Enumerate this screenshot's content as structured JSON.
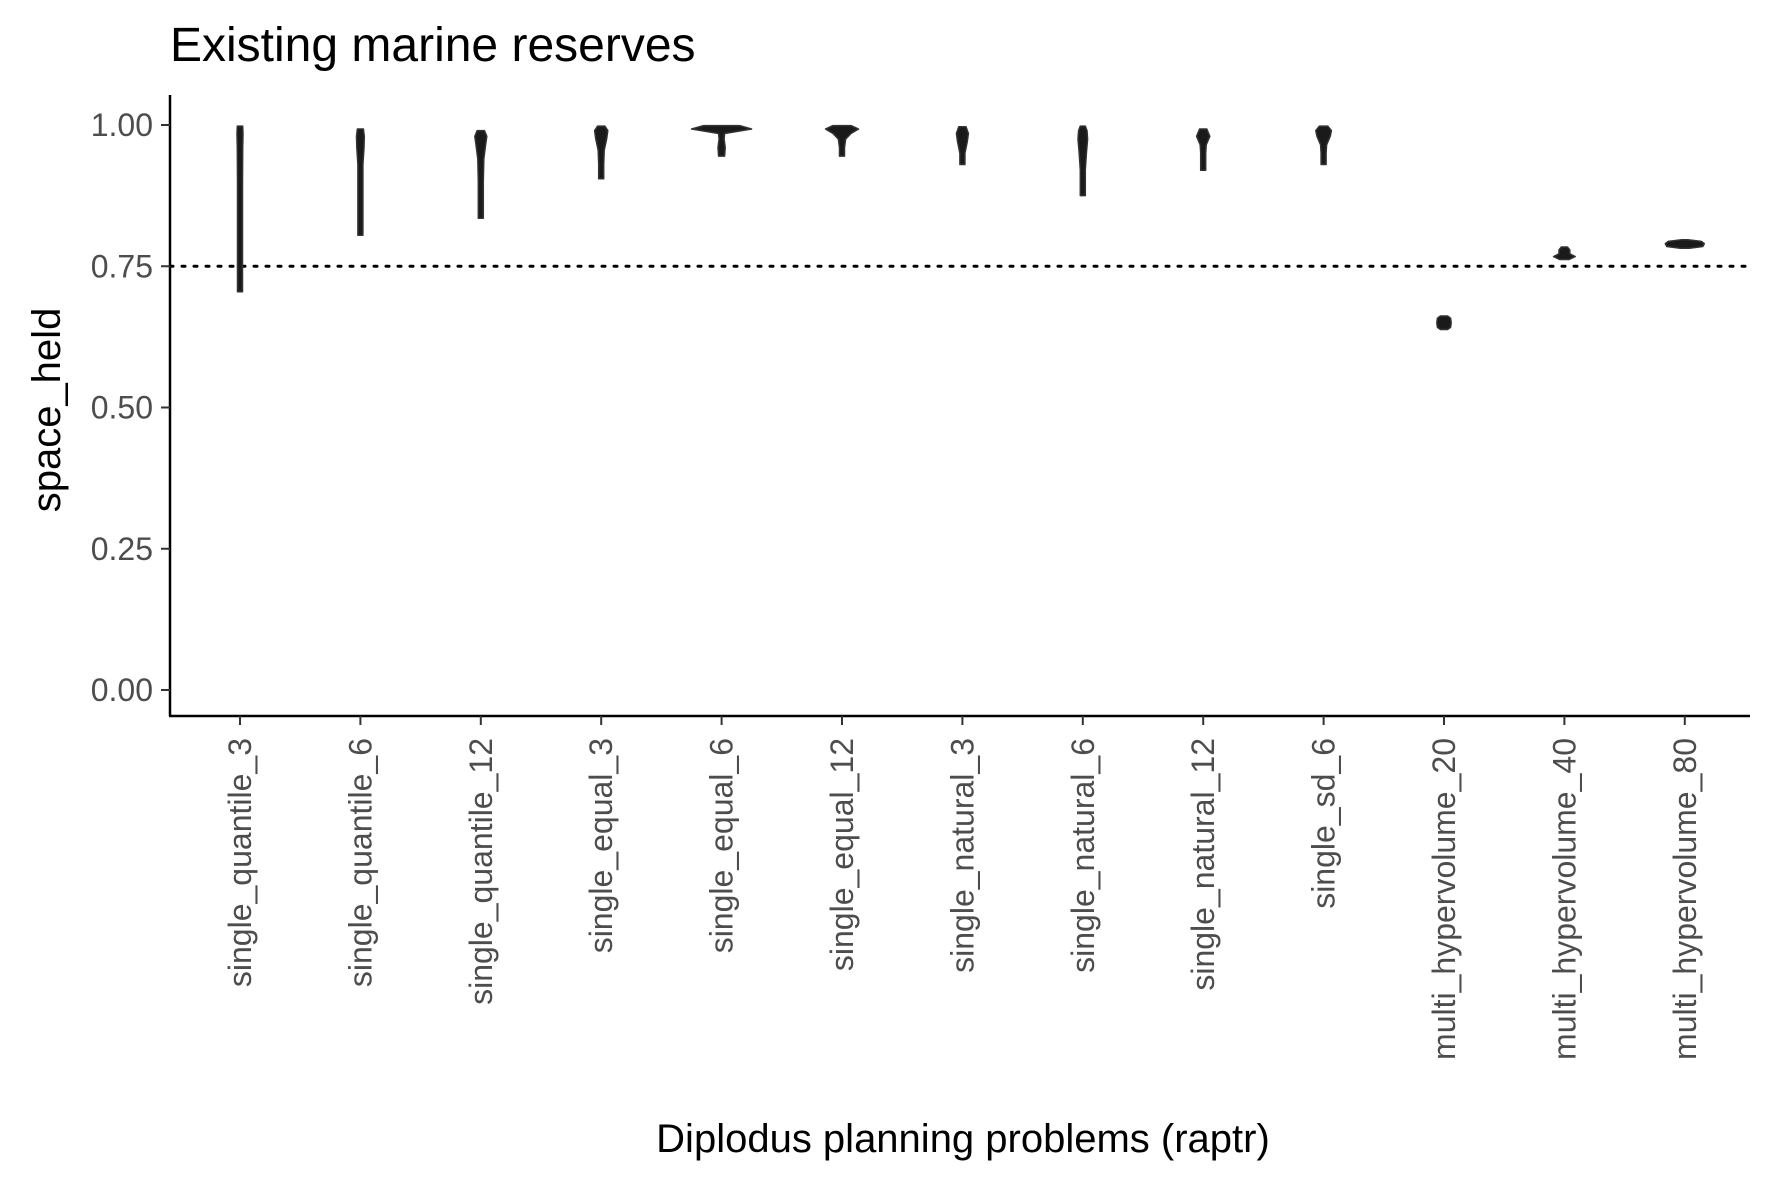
{
  "chart_data": {
    "type": "violin",
    "title": "Existing marine reserves",
    "xlabel": "Diplodus planning problems (raptr)",
    "ylabel": "space_held",
    "ylim": [
      -0.05,
      1.05
    ],
    "yticks": [
      "0.00",
      "0.25",
      "0.50",
      "0.75",
      "1.00"
    ],
    "ytick_values": [
      0,
      0.25,
      0.5,
      0.75,
      1.0
    ],
    "reference_line": {
      "y": 0.75,
      "style": "dotted"
    },
    "grid": false,
    "legend": "none",
    "categories": [
      "single_quantile_3",
      "single_quantile_6",
      "single_quantile_12",
      "single_equal_3",
      "single_equal_6",
      "single_equal_12",
      "single_natural_3",
      "single_natural_6",
      "single_natural_12",
      "single_sd_6",
      "multi_hypervolume_20",
      "multi_hypervolume_40",
      "multi_hypervolume_80"
    ],
    "distributions": [
      {
        "category": "single_quantile_3",
        "profile": [
          [
            0.705,
            0.004
          ],
          [
            0.8,
            0.005
          ],
          [
            0.9,
            0.008
          ],
          [
            0.96,
            0.009
          ],
          [
            0.985,
            0.01
          ],
          [
            0.998,
            0.009
          ]
        ]
      },
      {
        "category": "single_quantile_6",
        "profile": [
          [
            0.805,
            0.005
          ],
          [
            0.88,
            0.006
          ],
          [
            0.93,
            0.008
          ],
          [
            0.96,
            0.012
          ],
          [
            0.98,
            0.013
          ],
          [
            0.993,
            0.01
          ]
        ]
      },
      {
        "category": "single_quantile_12",
        "profile": [
          [
            0.835,
            0.004
          ],
          [
            0.9,
            0.006
          ],
          [
            0.94,
            0.01
          ],
          [
            0.965,
            0.016
          ],
          [
            0.98,
            0.02
          ],
          [
            0.99,
            0.012
          ]
        ]
      },
      {
        "category": "single_equal_3",
        "profile": [
          [
            0.905,
            0.004
          ],
          [
            0.93,
            0.006
          ],
          [
            0.955,
            0.01
          ],
          [
            0.975,
            0.018
          ],
          [
            0.99,
            0.022
          ],
          [
            0.998,
            0.012
          ]
        ]
      },
      {
        "category": "single_equal_6",
        "profile": [
          [
            0.945,
            0.01
          ],
          [
            0.96,
            0.012
          ],
          [
            0.975,
            0.008
          ],
          [
            0.985,
            0.01
          ],
          [
            0.993,
            0.1
          ],
          [
            0.999,
            0.06
          ]
        ]
      },
      {
        "category": "single_equal_12",
        "profile": [
          [
            0.945,
            0.006
          ],
          [
            0.96,
            0.007
          ],
          [
            0.975,
            0.012
          ],
          [
            0.985,
            0.03
          ],
          [
            0.993,
            0.055
          ],
          [
            0.999,
            0.03
          ]
        ]
      },
      {
        "category": "single_natural_3",
        "profile": [
          [
            0.93,
            0.004
          ],
          [
            0.95,
            0.008
          ],
          [
            0.97,
            0.016
          ],
          [
            0.985,
            0.02
          ],
          [
            0.997,
            0.012
          ]
        ]
      },
      {
        "category": "single_natural_6",
        "profile": [
          [
            0.875,
            0.003
          ],
          [
            0.92,
            0.006
          ],
          [
            0.95,
            0.012
          ],
          [
            0.975,
            0.016
          ],
          [
            0.99,
            0.014
          ],
          [
            0.998,
            0.008
          ]
        ]
      },
      {
        "category": "single_natural_12",
        "profile": [
          [
            0.92,
            0.008
          ],
          [
            0.935,
            0.007
          ],
          [
            0.95,
            0.004
          ],
          [
            0.965,
            0.01
          ],
          [
            0.98,
            0.022
          ],
          [
            0.993,
            0.012
          ]
        ]
      },
      {
        "category": "single_sd_6",
        "profile": [
          [
            0.93,
            0.006
          ],
          [
            0.95,
            0.006
          ],
          [
            0.965,
            0.01
          ],
          [
            0.98,
            0.022
          ],
          [
            0.99,
            0.026
          ],
          [
            0.998,
            0.014
          ]
        ]
      },
      {
        "category": "multi_hypervolume_20",
        "profile": [
          [
            0.638,
            0.012
          ],
          [
            0.642,
            0.022
          ],
          [
            0.65,
            0.024
          ],
          [
            0.658,
            0.022
          ],
          [
            0.662,
            0.012
          ]
        ]
      },
      {
        "category": "multi_hypervolume_40",
        "profile": [
          [
            0.762,
            0.016
          ],
          [
            0.767,
            0.036
          ],
          [
            0.772,
            0.018
          ],
          [
            0.779,
            0.018
          ],
          [
            0.784,
            0.01
          ]
        ]
      },
      {
        "category": "multi_hypervolume_80",
        "profile": [
          [
            0.782,
            0.015
          ],
          [
            0.785,
            0.06
          ],
          [
            0.79,
            0.065
          ],
          [
            0.794,
            0.055
          ],
          [
            0.797,
            0.01
          ]
        ]
      }
    ]
  }
}
